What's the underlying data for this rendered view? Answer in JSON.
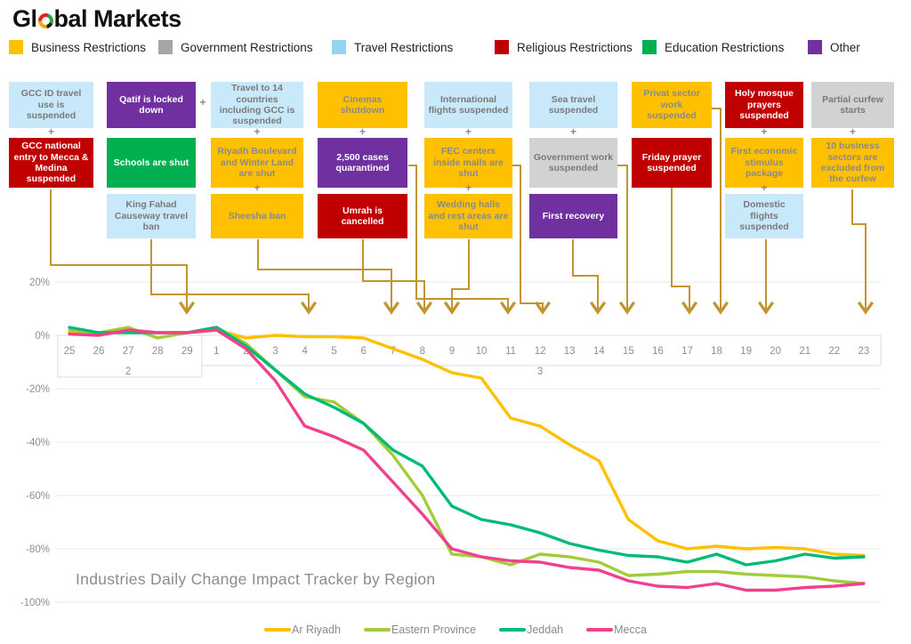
{
  "logo": {
    "text_before_icon": "Gl",
    "text_after_icon": "bal Markets"
  },
  "plus_glyph": "+",
  "categories_legend": [
    {
      "id": "business",
      "label": "Business Restrictions"
    },
    {
      "id": "government",
      "label": "Government Restrictions"
    },
    {
      "id": "travel",
      "label": "Travel Restrictions"
    },
    {
      "id": "religious",
      "label": "Religious Restrictions"
    },
    {
      "id": "education",
      "label": "Education Restrictions"
    },
    {
      "id": "other",
      "label": "Other"
    }
  ],
  "category_colors": {
    "business": {
      "legend": "#FFC000",
      "box": "#FFC000",
      "text": "#8A8A8A"
    },
    "government": {
      "legend": "#A6A6A6",
      "box": "#D2D2D2",
      "text": "#7A7A7A"
    },
    "travel": {
      "legend": "#92D4F2",
      "box": "#C8E9F9",
      "text": "#7A7A7A"
    },
    "religious": {
      "legend": "#C00000",
      "box": "#C00000",
      "text": "#FFFFFF"
    },
    "education": {
      "legend": "#00B050",
      "box": "#00B050",
      "text": "#FFFFFF"
    },
    "other": {
      "legend": "#7030A0",
      "box": "#7030A0",
      "text": "#FFFFFF"
    }
  },
  "connector_color": "#C1952F",
  "annotations": [
    {
      "boxes": [
        {
          "text": "GCC ID travel use is suspended",
          "category": "travel",
          "plus_above": false
        },
        {
          "text": "GCC national entry to Mecca & Medina suspended",
          "category": "religious",
          "plus_above": true
        }
      ]
    },
    {
      "boxes": [
        {
          "text": "Qatif is locked down",
          "category": "other",
          "plus_above": false
        },
        {
          "text": "Schools are shut",
          "category": "education",
          "plus_above": false
        },
        {
          "text": "King Fahad Causeway travel ban",
          "category": "travel",
          "plus_above": false
        }
      ]
    },
    {
      "plus_left": true,
      "boxes": [
        {
          "text": "Travel to 14 countries including GCC is suspended",
          "category": "travel",
          "plus_above": false
        },
        {
          "text": "Riyadh Boulevard and Winter Land are shut",
          "category": "business",
          "plus_above": true
        },
        {
          "text": "Sheesha ban",
          "category": "business",
          "plus_above": true
        }
      ]
    },
    {
      "boxes": [
        {
          "text": "Cinemas shutdown",
          "category": "business",
          "plus_above": false
        },
        {
          "text": "2,500 cases quarantined",
          "category": "other",
          "plus_above": true
        },
        {
          "text": "Umrah is cancelled",
          "category": "religious",
          "plus_above": false
        }
      ]
    },
    {
      "boxes": [
        {
          "text": "International flights suspended",
          "category": "travel",
          "plus_above": false
        },
        {
          "text": "FEC centers inside malls are shut",
          "category": "business",
          "plus_above": true
        },
        {
          "text": "Wedding halls and rest areas are shut",
          "category": "business",
          "plus_above": true
        }
      ]
    },
    {
      "boxes": [
        {
          "text": "Sea travel suspended",
          "category": "travel",
          "plus_above": false
        },
        {
          "text": "Government work suspended",
          "category": "government",
          "plus_above": true
        },
        {
          "text": "First recovery",
          "category": "other",
          "plus_above": false
        }
      ]
    },
    {
      "boxes": [
        {
          "text": "Privat sector work suspended",
          "category": "business",
          "plus_above": false
        },
        {
          "text": "Friday prayer suspended",
          "category": "religious",
          "plus_above": false
        }
      ]
    },
    {
      "boxes": [
        {
          "text": "Holy mosque prayers suspended",
          "category": "religious",
          "plus_above": false
        },
        {
          "text": "First economic stimulus package",
          "category": "business",
          "plus_above": true
        },
        {
          "text": "Domestic flights suspended",
          "category": "travel",
          "plus_above": true
        }
      ]
    },
    {
      "boxes": [
        {
          "text": "Partial curfew starts",
          "category": "government",
          "plus_above": false
        },
        {
          "text": "10 business sectors are excluded from the curfew",
          "category": "business",
          "plus_above": true
        }
      ]
    }
  ],
  "chart_data": {
    "type": "line",
    "title": "Industries Daily Change Impact Tracker by Region",
    "x_categories": [
      "25",
      "26",
      "27",
      "28",
      "29",
      "1",
      "2",
      "3",
      "4",
      "5",
      "6",
      "7",
      "8",
      "9",
      "10",
      "11",
      "12",
      "13",
      "14",
      "15",
      "16",
      "17",
      "18",
      "19",
      "20",
      "21",
      "22",
      "23"
    ],
    "month_labels": [
      {
        "label": "2",
        "tick_index": 2
      },
      {
        "label": "3",
        "tick_index": 16
      }
    ],
    "y_tick_labels": [
      "20%",
      "0%",
      "-20%",
      "-40%",
      "-60%",
      "-80%",
      "-100%"
    ],
    "y_tick_values": [
      20,
      0,
      -20,
      -40,
      -60,
      -80,
      -100
    ],
    "ylim": [
      -100,
      20
    ],
    "grid": "horizontal",
    "legend_position": "bottom",
    "series": [
      {
        "name": "Ar Riyadh",
        "color": "#FFC000",
        "values": [
          1,
          1,
          2,
          1,
          1,
          2,
          -1,
          0,
          -0.5,
          -0.5,
          -1,
          -5,
          -9,
          -14,
          -16,
          -31,
          -34,
          -41,
          -47,
          -69,
          -77,
          -80,
          -79,
          -80,
          -79.5,
          -80,
          -82,
          -82.5
        ]
      },
      {
        "name": "Eastern Province",
        "color": "#A3CC3B",
        "values": [
          2,
          1,
          3,
          -1,
          1,
          3,
          -3,
          -13,
          -23,
          -25,
          -33,
          -45,
          -60,
          -82,
          -83,
          -86,
          -82,
          -83,
          -85,
          -90,
          -89.5,
          -88.5,
          -88.5,
          -89.5,
          -90,
          -90.5,
          -92,
          -93
        ]
      },
      {
        "name": "Jeddah",
        "color": "#00BA78",
        "values": [
          3,
          1,
          1,
          1,
          1,
          3,
          -4,
          -13,
          -22,
          -27,
          -33,
          -43,
          -49,
          -64,
          -69,
          -71,
          -74,
          -78,
          -80.5,
          -82.5,
          -83,
          -85,
          -82,
          -86,
          -84.5,
          -82,
          -83.5,
          -83
        ]
      },
      {
        "name": "Mecca",
        "color": "#F0418D",
        "values": [
          0.5,
          0,
          2,
          1,
          1,
          2,
          -5,
          -17,
          -34,
          -38,
          -43,
          -55,
          -67,
          -80,
          -83,
          -84.5,
          -85,
          -87,
          -88,
          -92,
          -94,
          -94.5,
          -93,
          -95.5,
          -95.5,
          -94.5,
          -94,
          -93
        ]
      }
    ]
  }
}
